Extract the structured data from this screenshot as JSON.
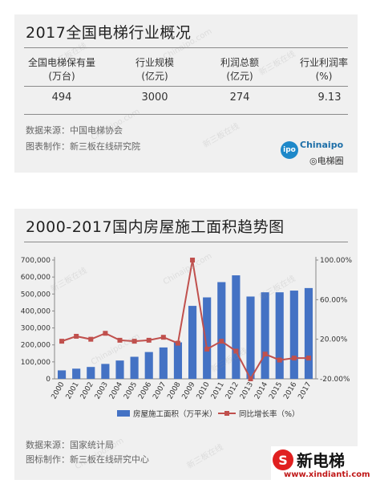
{
  "section1": {
    "title": "2017全国电梯行业概况",
    "stats": [
      {
        "label": "全国电梯保有量",
        "unit": "(万台)",
        "value": "494"
      },
      {
        "label": "行业规模",
        "unit": "(亿元)",
        "value": "3000"
      },
      {
        "label": "利润总额",
        "unit": "(亿元)",
        "value": "274"
      },
      {
        "label": "行业利润率",
        "unit": "(%)",
        "value": "9.13"
      }
    ],
    "source": "数据来源：中国电梯协会",
    "maker": "图表制作：新三板在线研究院",
    "logo_text": "Chinaipo",
    "logo_badge": "ipo",
    "wechat_text": "电梯圈"
  },
  "section2": {
    "title": "2000-2017国内房屋施工面积趋势图",
    "source": "数据来源：国家统计局",
    "maker": "图标制作：新三板在线研究中心"
  },
  "chart_data": {
    "type": "bar",
    "title": "2000-2017国内房屋施工面积趋势图",
    "categories": [
      "2000",
      "2001",
      "2002",
      "2003",
      "2004",
      "2005",
      "2006",
      "2007",
      "2008",
      "2009",
      "2010",
      "2011",
      "2012",
      "2013",
      "2014",
      "2015",
      "2016",
      "2017"
    ],
    "series": [
      {
        "name": "房屋施工面积（万平米）",
        "type": "bar",
        "axis": "left",
        "color": "#4472c4",
        "values": [
          50000,
          60000,
          70000,
          88000,
          108000,
          130000,
          158000,
          185000,
          215000,
          430000,
          480000,
          570000,
          610000,
          485000,
          510000,
          510000,
          520000,
          535000
        ]
      },
      {
        "name": "同比增长率（%）",
        "type": "line",
        "axis": "right",
        "color": "#c0504d",
        "values": [
          18,
          23,
          20,
          26,
          19,
          18,
          19,
          22,
          16,
          100,
          10,
          18,
          8,
          -20,
          5,
          -1,
          1,
          1
        ]
      }
    ],
    "y_left": {
      "min": 0,
      "max": 700000,
      "ticks": [
        "0",
        "100,000",
        "200,000",
        "300,000",
        "400,000",
        "500,000",
        "600,000",
        "700,000"
      ]
    },
    "y_right": {
      "min": -20,
      "max": 100,
      "ticks": [
        "-20.00%",
        "20.00%",
        "60.00%",
        "100.00%"
      ]
    },
    "legend_position": "bottom"
  },
  "watermark": {
    "items": [
      "新三板在线",
      "Chinaipo.com"
    ]
  },
  "brand": {
    "mark": "S",
    "name": "新电梯",
    "url": "www.xindianti.com"
  }
}
